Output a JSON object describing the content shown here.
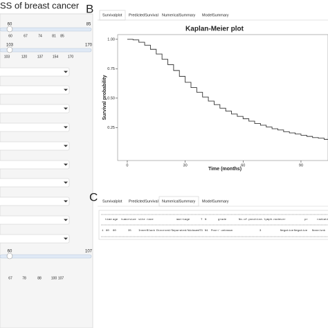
{
  "sidebar": {
    "title": "SS of breast cancer",
    "sliders": [
      {
        "value_label": "60",
        "max_label": "85",
        "tick_labels": [
          "60",
          "67",
          "74",
          "81",
          "85"
        ]
      },
      {
        "value_label": "103",
        "max_label": "170",
        "tick_labels": [
          "103",
          "120",
          "137",
          "154",
          "170"
        ]
      },
      {
        "value_label": "60",
        "max_label": "107",
        "tick_labels": [
          "67",
          "78",
          "88",
          "100",
          "107"
        ]
      }
    ]
  },
  "panel_b": {
    "label": "B",
    "tabs": [
      "Survivalplot",
      "PredictedSurvival",
      "NumericalSummary",
      "ModelSummary"
    ]
  },
  "chart_data": {
    "type": "line",
    "title": "Kaplan-Meier plot",
    "x_label": "Time (months)",
    "y_label": "Survival probability",
    "x": [
      0,
      3,
      6,
      9,
      12,
      15,
      18,
      21,
      24,
      27,
      30,
      33,
      36,
      39,
      42,
      45,
      48,
      51,
      54,
      57,
      60,
      63,
      66,
      69,
      72,
      75,
      78,
      81,
      84,
      87,
      90,
      93,
      96,
      99,
      102
    ],
    "values": [
      1.0,
      0.995,
      0.975,
      0.95,
      0.915,
      0.875,
      0.83,
      0.785,
      0.735,
      0.685,
      0.635,
      0.59,
      0.55,
      0.51,
      0.475,
      0.445,
      0.415,
      0.39,
      0.365,
      0.345,
      0.325,
      0.305,
      0.285,
      0.27,
      0.255,
      0.24,
      0.23,
      0.215,
      0.205,
      0.195,
      0.185,
      0.175,
      0.165,
      0.16,
      0.15
    ],
    "color": "#333333",
    "xlim": [
      -5,
      104
    ],
    "ylim": [
      -0.03,
      1.04
    ],
    "xticks": [
      0,
      30,
      60,
      90
    ],
    "yticks": [
      {
        "value": 0.25,
        "label": "0.25"
      },
      {
        "value": 0.5,
        "label": "0.50"
      },
      {
        "value": 0.75,
        "label": "0.75"
      },
      {
        "value": 1,
        "label": "1.00"
      }
    ]
  },
  "panel_c": {
    "label": "C",
    "tabs": [
      "Survivalplot",
      "PredictedSurvival",
      "NumericalSummary",
      "ModelSummary"
    ],
    "table": {
      "header": [
        "time",
        "age",
        "tumorsize",
        "site",
        "race",
        "marriage",
        "T",
        "N",
        "grade",
        "No.of.positive.lymph.nodes",
        "er",
        "pr",
        "radiati"
      ],
      "rows": [
        [
          "1",
          "60",
          "60",
          "35",
          "Inner",
          "Black",
          "Divorced/Separated/Widowed",
          "T3",
          "N1",
          "Poor/ unknown",
          "3",
          "Negative",
          "Negative",
          "None/unk"
        ]
      ]
    }
  }
}
